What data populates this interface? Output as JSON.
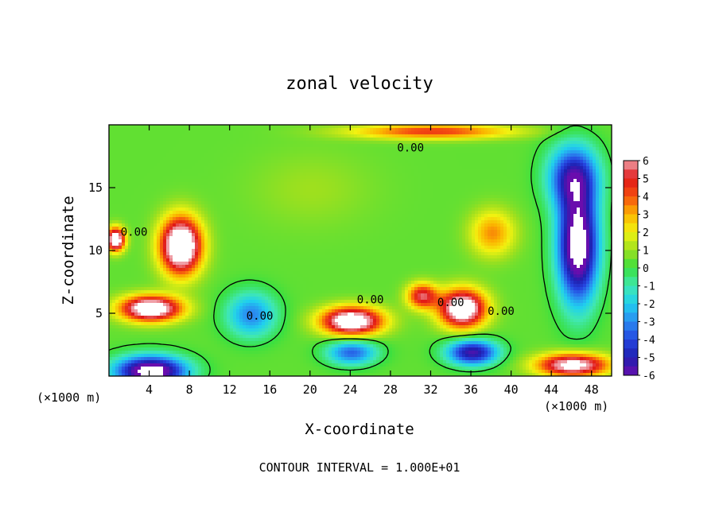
{
  "chart_data": {
    "type": "heatmap",
    "title": "zonal velocity",
    "xlabel": "X-coordinate",
    "ylabel": "Z-coordinate",
    "x_unit_note": "(×1000 m)",
    "footer": "CONTOUR INTERVAL = 1.000E+01",
    "xlim": [
      0,
      50
    ],
    "ylim": [
      0,
      20
    ],
    "x_ticks": [
      4,
      8,
      12,
      16,
      20,
      24,
      28,
      32,
      36,
      40,
      44,
      48
    ],
    "y_ticks": [
      5,
      10,
      15
    ],
    "colorbar": {
      "min": -6,
      "max": 6,
      "tick_labels": [
        "6",
        "5",
        "4",
        "3",
        "2",
        "1",
        "0",
        "-1",
        "-2",
        "-3",
        "-4",
        "-5",
        "-6"
      ]
    },
    "contour_labels": [
      "0.00",
      "0.00",
      "0.00",
      "0.00",
      "0.00",
      "0.00"
    ],
    "field_features": [
      {
        "x": 7,
        "z": 10.5,
        "u": 9,
        "sx": 2.0,
        "sz": 2.2
      },
      {
        "x": 4,
        "z": 5.5,
        "u": 8,
        "sx": 3.0,
        "sz": 1.0
      },
      {
        "x": 0.5,
        "z": 11.0,
        "u": 8,
        "sx": 0.9,
        "sz": 0.9
      },
      {
        "x": 24,
        "z": 4.5,
        "u": 8,
        "sx": 3.0,
        "sz": 1.1
      },
      {
        "x": 35,
        "z": 5.5,
        "u": 8,
        "sx": 2.3,
        "sz": 1.5
      },
      {
        "x": 38,
        "z": 11.5,
        "u": 3,
        "sx": 2.2,
        "sz": 1.8
      },
      {
        "x": 46.5,
        "z": 10.5,
        "u": -8,
        "sx": 2.0,
        "sz": 4.5
      },
      {
        "x": 46,
        "z": 16,
        "u": -5,
        "sx": 2.5,
        "sz": 2.5
      },
      {
        "x": 4,
        "z": 0.5,
        "u": -8,
        "sx": 3.5,
        "sz": 1.2
      },
      {
        "x": 36,
        "z": 2.0,
        "u": -6,
        "sx": 2.5,
        "sz": 1.0
      },
      {
        "x": 46,
        "z": 1.0,
        "u": 7,
        "sx": 3.5,
        "sz": 0.9
      },
      {
        "x": 32,
        "z": 19.6,
        "u": 4,
        "sx": 8.0,
        "sz": 0.6
      },
      {
        "x": 24,
        "z": 2.0,
        "u": -4,
        "sx": 2.5,
        "sz": 1.0
      },
      {
        "x": 14,
        "z": 5.0,
        "u": -3.5,
        "sx": 2.5,
        "sz": 1.8
      },
      {
        "x": 31,
        "z": 6.5,
        "u": 5,
        "sx": 1.5,
        "sz": 1.0
      },
      {
        "x": 20,
        "z": 15.0,
        "u": 0.6,
        "sx": 6.0,
        "sz": 3.0
      }
    ]
  }
}
